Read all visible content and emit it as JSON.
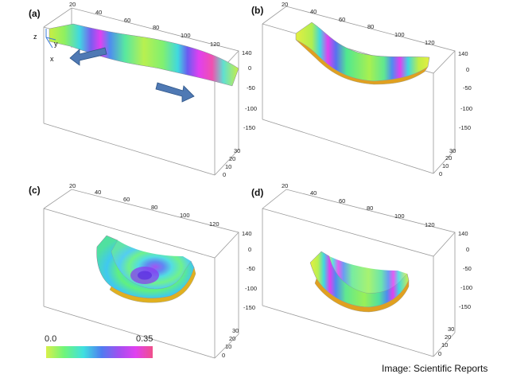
{
  "panels": [
    {
      "label": "(a)",
      "top_ticks": [
        "20",
        "40",
        "60",
        "80",
        "100",
        "120"
      ],
      "right_ticks": [
        "140",
        "0",
        "-50",
        "-100",
        "-150"
      ],
      "depth_ticks": [
        "30",
        "20",
        "10",
        "0"
      ]
    },
    {
      "label": "(b)",
      "top_ticks": [
        "20",
        "40",
        "60",
        "80",
        "100",
        "120"
      ],
      "right_ticks": [
        "140",
        "0",
        "-50",
        "-100",
        "-150"
      ],
      "depth_ticks": [
        "30",
        "20",
        "10",
        "0"
      ]
    },
    {
      "label": "(c)",
      "top_ticks": [
        "20",
        "40",
        "60",
        "80",
        "100",
        "120"
      ],
      "right_ticks": [
        "140",
        "0",
        "-50",
        "-100",
        "-150"
      ],
      "depth_ticks": [
        "30",
        "20",
        "10",
        "0"
      ]
    },
    {
      "label": "(d)",
      "top_ticks": [
        "20",
        "40",
        "60",
        "80",
        "100",
        "120"
      ],
      "right_ticks": [
        "140",
        "0",
        "-50",
        "-100",
        "-150"
      ],
      "depth_ticks": [
        "30",
        "20",
        "10",
        "0"
      ]
    }
  ],
  "axes": {
    "z": "z",
    "y": "y",
    "x": "x"
  },
  "colorbar": {
    "min": "0.0",
    "max": "0.35",
    "colors": [
      "#d8f04a",
      "#6ef57a",
      "#3fe0e0",
      "#4f7cf0",
      "#a050f0",
      "#e040f0",
      "#f0508a"
    ]
  },
  "credit": "Image: Scientific Reports"
}
